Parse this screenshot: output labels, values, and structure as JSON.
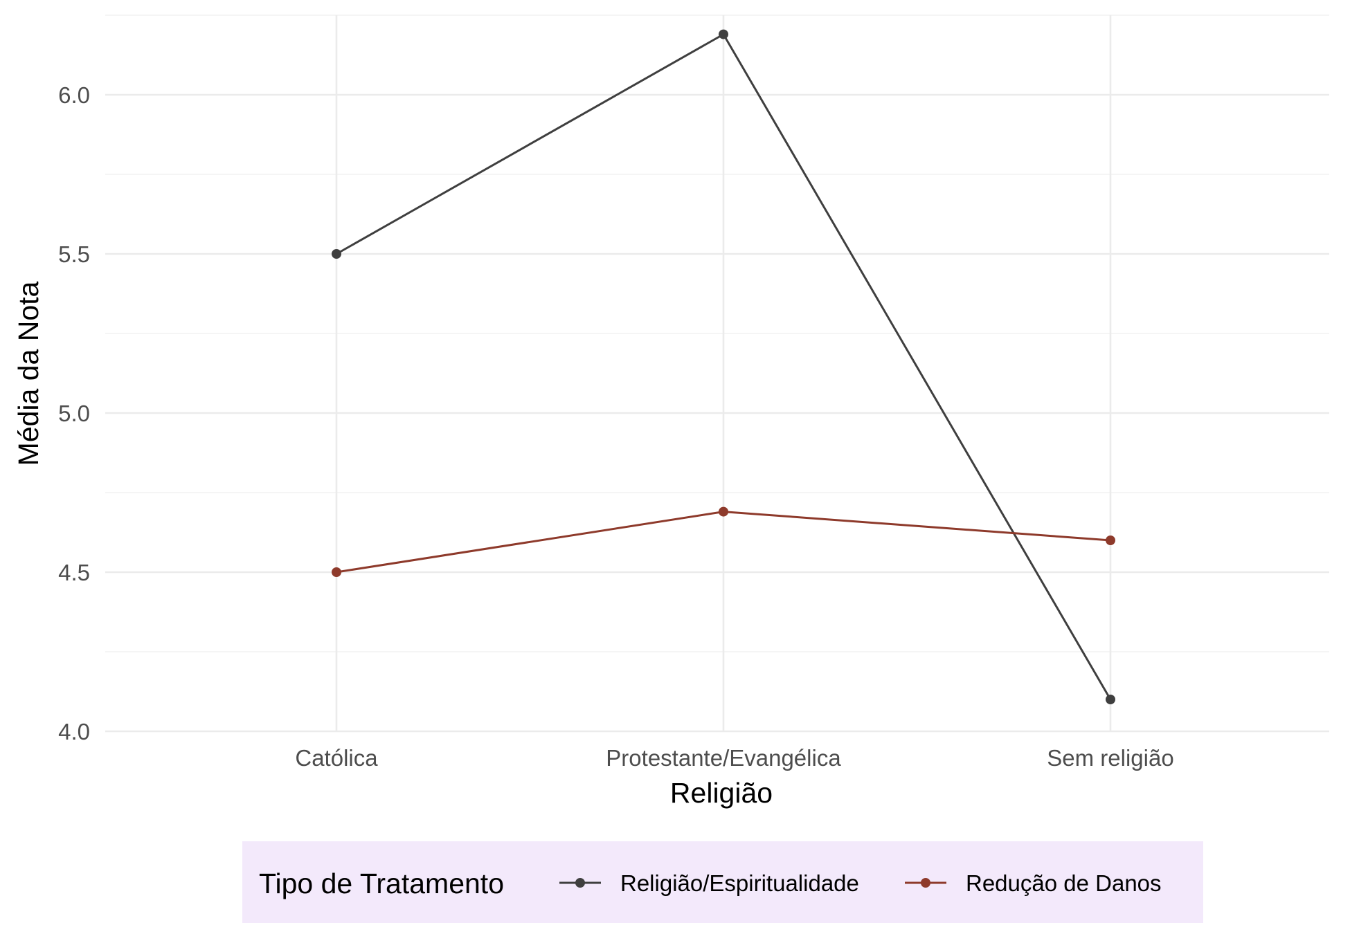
{
  "chart_data": {
    "type": "line",
    "title": "",
    "xlabel": "Religião",
    "ylabel": "Média da Nota",
    "categories": [
      "Católica",
      "Protestante/Evangélica",
      "Sem religião"
    ],
    "ylim": [
      4.0,
      6.25
    ],
    "yticks": [
      "4.0",
      "4.5",
      "5.0",
      "5.5",
      "6.0"
    ],
    "grid": true,
    "legend": {
      "title": "Tipo de Tratamento",
      "position": "bottom",
      "background": "#f3e9fb"
    },
    "series": [
      {
        "name": "Religião/Espiritualidade",
        "color": "#3f3f3f",
        "values": [
          5.5,
          6.19,
          4.1
        ]
      },
      {
        "name": "Redução de Danos",
        "color": "#8e3a2b",
        "values": [
          4.5,
          4.69,
          4.6
        ]
      }
    ]
  }
}
